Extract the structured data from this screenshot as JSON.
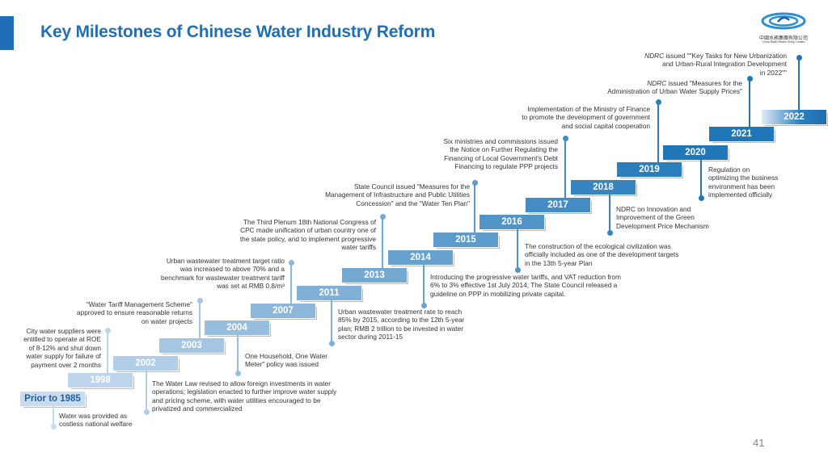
{
  "title": "Key Milestones of Chinese Water Industry Reform",
  "page_number": "41",
  "logo": {
    "name_cn": "中國水務集團有限公司",
    "name_en": "China Water Affairs Group Limited"
  },
  "colors": {
    "accent": "#1f6fb8",
    "year_light": "#c9dbef",
    "year_dark": "#1f77b8"
  },
  "milestones": [
    {
      "year": "Prior to 1985",
      "note": [
        "Water was provided as",
        "costless national welfare"
      ]
    },
    {
      "year": "1998",
      "note": [
        "City water suppliers were",
        "entitled to operate at ROE",
        "of 8-12% and shut down",
        "water supply for failure of",
        "payment over 2 months"
      ]
    },
    {
      "year": "2002",
      "note": [
        "The Water Law revised to allow foreign investments in water",
        "operations; legislation enacted to further improve water supply",
        "and pricing scheme, with water utilities encouraged to be",
        "privatized and commercialized"
      ]
    },
    {
      "year": "2003",
      "note": [
        "\"Water Tariff Management Scheme\"",
        "approved to ensure reasonable returns",
        "on water projects"
      ]
    },
    {
      "year": "2004",
      "note": [
        "One Household, One Water",
        "Meter\"   policy was issued"
      ]
    },
    {
      "year": "2007",
      "note": [
        "Urban wastewater treatment target ratio",
        "was increased to above 70% and a",
        "benchmark for wastewater treatment tariff",
        "was set at RMB 0.8/m³"
      ]
    },
    {
      "year": "2011",
      "note": [
        "Urban wastewater treatment rate to reach",
        "85% by 2015, according to the 12th 5-year",
        "plan; RMB 2 trillion to be invested in water",
        "sector during 2011-15"
      ]
    },
    {
      "year": "2013",
      "note": [
        "The Third Plenum 18th National Congress of",
        "CPC made unification of urban country one of",
        "the state policy, and to implement progressive",
        "water tariffs"
      ]
    },
    {
      "year": "2014",
      "note": [
        "Introducing the progressive water tariffs, and VAT reduction from",
        "6% to 3% effective 1st July 2014; The State Council released a",
        "guideline on PPP in mobilizing private capital."
      ]
    },
    {
      "year": "2015",
      "note": [
        "State Council issued   \"Measures for the",
        "Management of Infrastructure and Public Utilities",
        "Concession\"   and the   \"Water Ten Plan\""
      ]
    },
    {
      "year": "2016",
      "note": [
        "The construction of the ecological civilization was",
        "officially included as one of the development targets",
        "in the 13th 5-year Plan"
      ]
    },
    {
      "year": "2017",
      "note": [
        "Six ministries and commissions issued",
        "the Notice on Further Regulating the",
        "Financing of Local Government's Debt",
        "Financing to regulate PPP projects"
      ]
    },
    {
      "year": "2018",
      "note": [
        "NDRC on Innovation and",
        "Improvement of the Green",
        "Development Price Mechanism"
      ]
    },
    {
      "year": "2019",
      "note": [
        "Implementation of the Ministry of Finance",
        "to promote the development of government",
        "and social capital cooperation"
      ]
    },
    {
      "year": "2020",
      "note": [
        "Regulation on",
        "optimizing the business",
        "environment has been",
        "implemented officially"
      ]
    },
    {
      "year": "2021",
      "note_prefix": "NDRC",
      "note": [
        " issued \"Measures for the",
        "Administration of Urban Water Supply Prices\""
      ]
    },
    {
      "year": "2022",
      "note_prefix": "NDRC",
      "note": [
        " issued \"\"Key Tasks for New Urbanization",
        "and Urban-Rural Integration Development",
        "in 2022\"\""
      ]
    }
  ]
}
